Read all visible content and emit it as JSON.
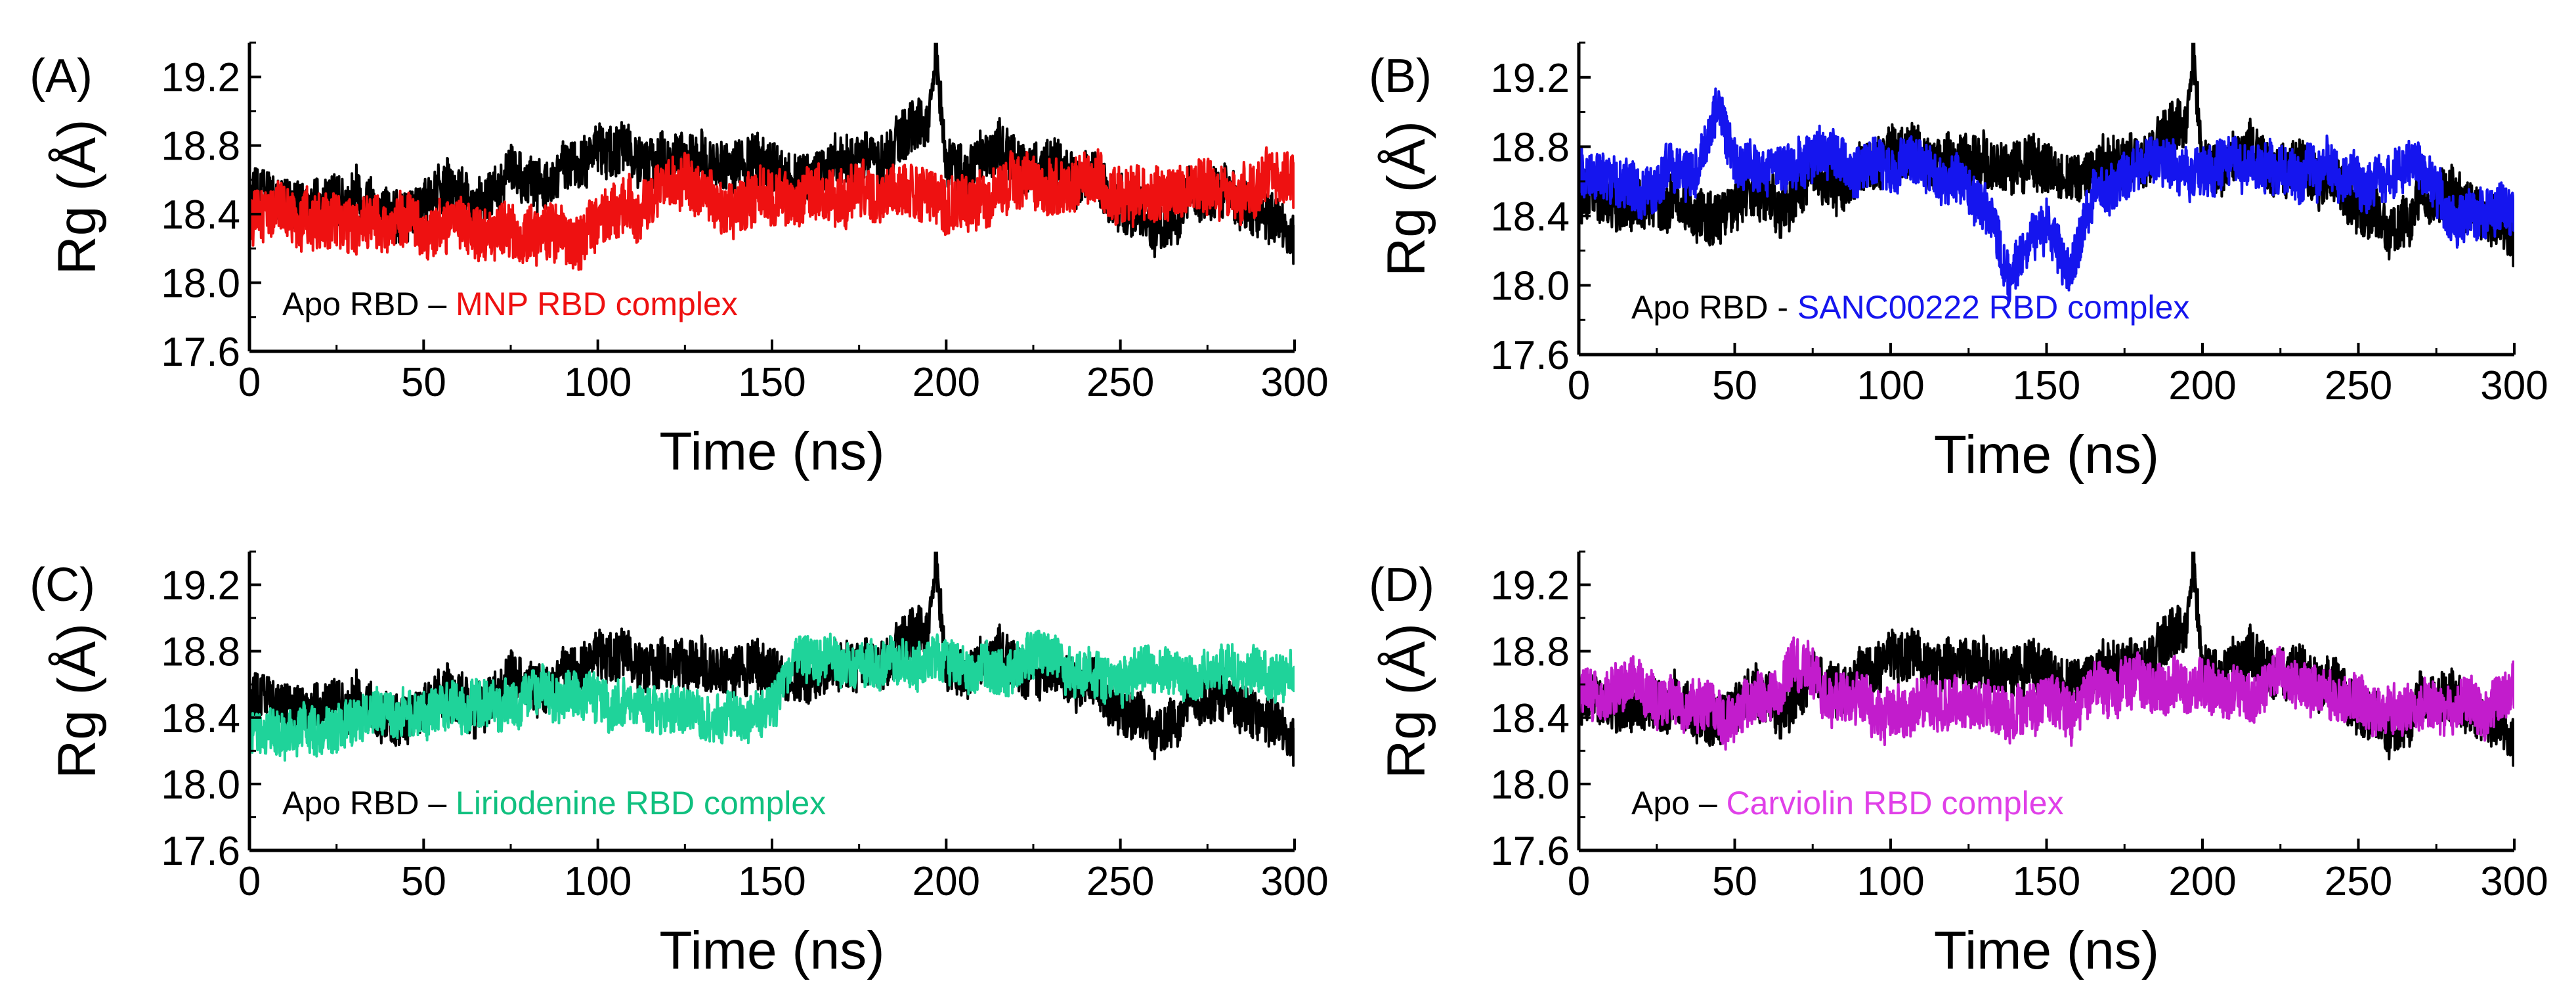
{
  "figure": {
    "panels_count": 4
  },
  "colors": {
    "apo": "#000000",
    "mnp": "#ee1111",
    "sanc": "#1515ee",
    "lirio": "#1fd39a",
    "carviolin": "#c21ccc",
    "carviolin_text": "#e040e8",
    "lirio_text": "#10c07f"
  },
  "chart_data": [
    {
      "panel": "(A)",
      "type": "line",
      "title": "",
      "xlabel": "Time (ns)",
      "ylabel": "Rg (Å)",
      "xlim": [
        0,
        300
      ],
      "ylim": [
        17.6,
        19.4
      ],
      "xticks": [
        "0",
        "50",
        "100",
        "150",
        "200",
        "250",
        "300"
      ],
      "yticks": [
        "17.6",
        "18.0",
        "18.4",
        "18.8",
        "19.2"
      ],
      "legend": {
        "position": "bottom-left",
        "parts": [
          "Apo RBD – ",
          "MNP RBD complex"
        ]
      },
      "series": [
        {
          "name": "Apo RBD",
          "color": "#000000",
          "x": [
            0,
            20,
            40,
            60,
            80,
            100,
            120,
            140,
            160,
            180,
            195,
            197,
            200,
            220,
            240,
            255,
            260,
            270,
            280,
            290,
            300
          ],
          "values": [
            18.5,
            18.45,
            18.5,
            18.5,
            18.55,
            18.75,
            18.7,
            18.65,
            18.65,
            18.7,
            19.0,
            19.38,
            18.75,
            18.75,
            18.6,
            18.4,
            18.2,
            18.45,
            18.4,
            18.35,
            18.3
          ],
          "amplitude": 0.15
        },
        {
          "name": "MNP RBD complex",
          "color": "#ee1111",
          "x": [
            0,
            20,
            40,
            60,
            80,
            100,
            110,
            120,
            140,
            160,
            180,
            200,
            220,
            240,
            260,
            280,
            300
          ],
          "values": [
            18.35,
            18.3,
            18.35,
            18.35,
            18.3,
            18.35,
            18.35,
            18.55,
            18.55,
            18.55,
            18.55,
            18.5,
            18.55,
            18.5,
            18.5,
            18.5,
            18.55
          ],
          "amplitude": 0.16
        }
      ]
    },
    {
      "panel": "(B)",
      "type": "line",
      "title": "",
      "xlabel": "Time (ns)",
      "ylabel": "Rg (Å)",
      "xlim": [
        0,
        300
      ],
      "ylim": [
        17.6,
        19.4
      ],
      "xticks": [
        "0",
        "50",
        "100",
        "150",
        "200",
        "250",
        "300"
      ],
      "yticks": [
        "17.6",
        "18.0",
        "18.4",
        "18.8",
        "19.2"
      ],
      "legend": {
        "position": "bottom-left",
        "parts": [
          "Apo RBD - ",
          "SANC00222 RBD complex"
        ]
      },
      "series": [
        {
          "name": "Apo RBD",
          "color": "#000000",
          "x": [
            0,
            20,
            40,
            60,
            80,
            100,
            120,
            140,
            160,
            180,
            195,
            197,
            200,
            220,
            240,
            255,
            260,
            270,
            280,
            290,
            300
          ],
          "values": [
            18.5,
            18.45,
            18.5,
            18.5,
            18.55,
            18.75,
            18.7,
            18.65,
            18.65,
            18.7,
            19.0,
            19.38,
            18.75,
            18.75,
            18.6,
            18.4,
            18.2,
            18.45,
            18.4,
            18.35,
            18.3
          ],
          "amplitude": 0.15
        },
        {
          "name": "SANC00222 RBD complex",
          "color": "#1515ee",
          "x": [
            0,
            20,
            40,
            45,
            50,
            60,
            80,
            100,
            120,
            130,
            138,
            145,
            150,
            158,
            165,
            180,
            200,
            220,
            240,
            260,
            265,
            280,
            300
          ],
          "values": [
            18.6,
            18.55,
            18.7,
            18.95,
            18.7,
            18.6,
            18.7,
            18.75,
            18.6,
            18.45,
            18.05,
            18.25,
            18.35,
            18.05,
            18.5,
            18.65,
            18.7,
            18.7,
            18.75,
            18.6,
            18.7,
            18.4,
            18.45
          ],
          "amplitude": 0.14
        }
      ]
    },
    {
      "panel": "(C)",
      "type": "line",
      "title": "",
      "xlabel": "Time (ns)",
      "ylabel": "Rg (Å)",
      "xlim": [
        0,
        300
      ],
      "ylim": [
        17.6,
        19.4
      ],
      "xticks": [
        "0",
        "50",
        "100",
        "150",
        "200",
        "250",
        "300"
      ],
      "yticks": [
        "17.6",
        "18.0",
        "18.4",
        "18.8",
        "19.2"
      ],
      "legend": {
        "position": "bottom-left",
        "parts": [
          "Apo RBD – ",
          "Liriodenine RBD complex"
        ]
      },
      "series": [
        {
          "name": "Apo RBD",
          "color": "#000000",
          "x": [
            0,
            20,
            40,
            60,
            80,
            100,
            120,
            140,
            160,
            180,
            195,
            197,
            200,
            220,
            240,
            255,
            260,
            270,
            280,
            290,
            300
          ],
          "values": [
            18.5,
            18.45,
            18.5,
            18.5,
            18.55,
            18.75,
            18.7,
            18.65,
            18.65,
            18.7,
            19.0,
            19.38,
            18.75,
            18.75,
            18.6,
            18.4,
            18.2,
            18.45,
            18.4,
            18.35,
            18.3
          ],
          "amplitude": 0.15
        },
        {
          "name": "Liriodenine RBD complex",
          "color": "#1fd39a",
          "x": [
            0,
            20,
            40,
            60,
            80,
            100,
            120,
            140,
            150,
            155,
            170,
            190,
            210,
            230,
            250,
            270,
            300
          ],
          "values": [
            18.3,
            18.35,
            18.4,
            18.4,
            18.5,
            18.5,
            18.45,
            18.4,
            18.45,
            18.7,
            18.7,
            18.75,
            18.7,
            18.7,
            18.65,
            18.65,
            18.7
          ],
          "amplitude": 0.14
        }
      ]
    },
    {
      "panel": "(D)",
      "type": "line",
      "title": "",
      "xlabel": "Time (ns)",
      "ylabel": "Rg (Å)",
      "xlim": [
        0,
        300
      ],
      "ylim": [
        17.6,
        19.4
      ],
      "xticks": [
        "0",
        "50",
        "100",
        "150",
        "200",
        "250",
        "300"
      ],
      "yticks": [
        "17.6",
        "18.0",
        "18.4",
        "18.8",
        "19.2"
      ],
      "legend": {
        "position": "bottom-left",
        "parts": [
          "Apo – ",
          "Carviolin RBD complex"
        ]
      },
      "series": [
        {
          "name": "Apo RBD",
          "color": "#000000",
          "x": [
            0,
            20,
            40,
            60,
            80,
            100,
            120,
            140,
            160,
            180,
            195,
            197,
            200,
            220,
            240,
            255,
            260,
            270,
            280,
            290,
            300
          ],
          "values": [
            18.5,
            18.45,
            18.5,
            18.5,
            18.55,
            18.75,
            18.7,
            18.65,
            18.65,
            18.7,
            19.0,
            19.38,
            18.75,
            18.75,
            18.6,
            18.4,
            18.2,
            18.45,
            18.4,
            18.35,
            18.3
          ],
          "amplitude": 0.15
        },
        {
          "name": "Carviolin RBD complex",
          "color": "#c21ccc",
          "x": [
            0,
            20,
            40,
            60,
            73,
            80,
            100,
            120,
            140,
            160,
            180,
            200,
            220,
            240,
            260,
            280,
            300
          ],
          "values": [
            18.55,
            18.55,
            18.45,
            18.5,
            18.75,
            18.5,
            18.55,
            18.55,
            18.45,
            18.45,
            18.5,
            18.55,
            18.55,
            18.5,
            18.45,
            18.5,
            18.55
          ],
          "amplitude": 0.15
        }
      ]
    }
  ]
}
